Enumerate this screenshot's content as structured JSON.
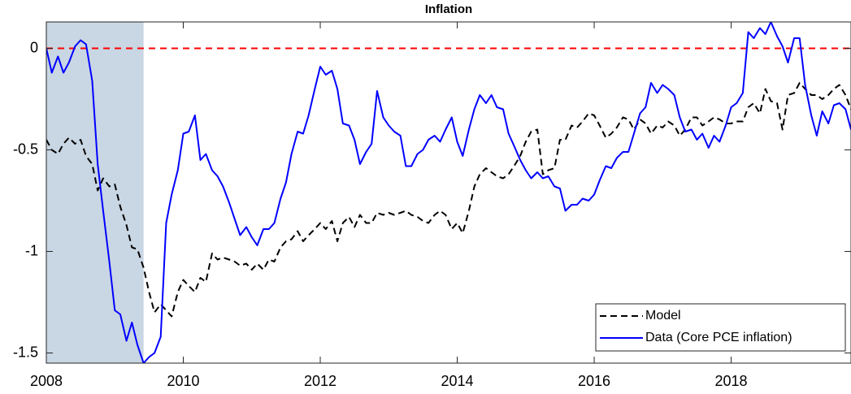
{
  "chart_data": {
    "type": "line",
    "title": "Inflation",
    "x": [
      2008,
      2008.08,
      2008.17,
      2008.25,
      2008.33,
      2008.42,
      2008.5,
      2008.58,
      2008.67,
      2008.75,
      2008.83,
      2008.92,
      2009,
      2009.08,
      2009.17,
      2009.25,
      2009.33,
      2009.42,
      2009.5,
      2009.58,
      2009.67,
      2009.75,
      2009.83,
      2009.92,
      2010,
      2010.08,
      2010.17,
      2010.25,
      2010.33,
      2010.42,
      2010.5,
      2010.58,
      2010.67,
      2010.75,
      2010.83,
      2010.92,
      2011,
      2011.08,
      2011.17,
      2011.25,
      2011.33,
      2011.42,
      2011.5,
      2011.58,
      2011.67,
      2011.75,
      2011.83,
      2011.92,
      2012,
      2012.08,
      2012.17,
      2012.25,
      2012.33,
      2012.42,
      2012.5,
      2012.58,
      2012.67,
      2012.75,
      2012.83,
      2012.92,
      2013,
      2013.08,
      2013.17,
      2013.25,
      2013.33,
      2013.42,
      2013.5,
      2013.58,
      2013.67,
      2013.75,
      2013.83,
      2013.92,
      2014,
      2014.08,
      2014.17,
      2014.25,
      2014.33,
      2014.42,
      2014.5,
      2014.58,
      2014.67,
      2014.75,
      2014.83,
      2014.92,
      2015,
      2015.08,
      2015.17,
      2015.25,
      2015.33,
      2015.42,
      2015.5,
      2015.58,
      2015.67,
      2015.75,
      2015.83,
      2015.92,
      2016,
      2016.08,
      2016.17,
      2016.25,
      2016.33,
      2016.42,
      2016.5,
      2016.58,
      2016.67,
      2016.75,
      2016.83,
      2016.92,
      2017,
      2017.08,
      2017.17,
      2017.25,
      2017.33,
      2017.42,
      2017.5,
      2017.58,
      2017.67,
      2017.75,
      2017.83,
      2017.92,
      2018,
      2018.08,
      2018.17,
      2018.25,
      2018.33,
      2018.42,
      2018.5,
      2018.58,
      2018.67,
      2018.75,
      2018.83,
      2018.92,
      2019,
      2019.08,
      2019.17,
      2019.25,
      2019.33,
      2019.42,
      2019.5,
      2019.58,
      2019.67,
      2019.75
    ],
    "series": [
      {
        "name": "Model",
        "color": "#000000",
        "linestyle": "dashed",
        "values": [
          -0.45,
          -0.5,
          -0.52,
          -0.47,
          -0.44,
          -0.47,
          -0.45,
          -0.53,
          -0.57,
          -0.7,
          -0.64,
          -0.68,
          -0.67,
          -0.78,
          -0.87,
          -0.98,
          -0.99,
          -1.08,
          -1.2,
          -1.3,
          -1.26,
          -1.29,
          -1.32,
          -1.2,
          -1.14,
          -1.17,
          -1.2,
          -1.13,
          -1.15,
          -1.01,
          -1.04,
          -1.03,
          -1.04,
          -1.05,
          -1.07,
          -1.06,
          -1.09,
          -1.06,
          -1.09,
          -1.04,
          -1.05,
          -0.98,
          -0.95,
          -0.94,
          -0.9,
          -0.95,
          -0.92,
          -0.89,
          -0.86,
          -0.89,
          -0.85,
          -0.95,
          -0.86,
          -0.83,
          -0.88,
          -0.82,
          -0.86,
          -0.86,
          -0.81,
          -0.82,
          -0.81,
          -0.82,
          -0.81,
          -0.8,
          -0.82,
          -0.83,
          -0.85,
          -0.86,
          -0.82,
          -0.8,
          -0.82,
          -0.89,
          -0.86,
          -0.91,
          -0.8,
          -0.68,
          -0.62,
          -0.59,
          -0.61,
          -0.63,
          -0.64,
          -0.62,
          -0.58,
          -0.53,
          -0.46,
          -0.41,
          -0.4,
          -0.62,
          -0.6,
          -0.59,
          -0.45,
          -0.45,
          -0.38,
          -0.39,
          -0.36,
          -0.32,
          -0.33,
          -0.38,
          -0.44,
          -0.42,
          -0.39,
          -0.34,
          -0.35,
          -0.4,
          -0.35,
          -0.37,
          -0.42,
          -0.38,
          -0.39,
          -0.36,
          -0.38,
          -0.43,
          -0.4,
          -0.34,
          -0.34,
          -0.38,
          -0.36,
          -0.34,
          -0.35,
          -0.37,
          -0.37,
          -0.36,
          -0.36,
          -0.29,
          -0.27,
          -0.32,
          -0.2,
          -0.26,
          -0.27,
          -0.4,
          -0.23,
          -0.22,
          -0.17,
          -0.2,
          -0.23,
          -0.23,
          -0.25,
          -0.23,
          -0.2,
          -0.18,
          -0.23,
          -0.3
        ]
      },
      {
        "name": "Data (Core PCE inflation)",
        "color": "#0000ff",
        "linestyle": "solid",
        "values": [
          0,
          -0.12,
          -0.04,
          -0.12,
          -0.07,
          0.01,
          0.04,
          0.02,
          -0.16,
          -0.57,
          -0.8,
          -1.05,
          -1.29,
          -1.31,
          -1.44,
          -1.35,
          -1.46,
          -1.55,
          -1.52,
          -1.5,
          -1.42,
          -0.86,
          -0.72,
          -0.6,
          -0.42,
          -0.41,
          -0.33,
          -0.55,
          -0.52,
          -0.6,
          -0.63,
          -0.68,
          -0.76,
          -0.84,
          -0.92,
          -0.88,
          -0.93,
          -0.97,
          -0.89,
          -0.89,
          -0.86,
          -0.74,
          -0.66,
          -0.52,
          -0.41,
          -0.42,
          -0.33,
          -0.2,
          -0.09,
          -0.13,
          -0.11,
          -0.2,
          -0.37,
          -0.38,
          -0.45,
          -0.57,
          -0.51,
          -0.47,
          -0.21,
          -0.34,
          -0.38,
          -0.41,
          -0.43,
          -0.58,
          -0.58,
          -0.52,
          -0.5,
          -0.45,
          -0.43,
          -0.46,
          -0.4,
          -0.34,
          -0.46,
          -0.53,
          -0.4,
          -0.3,
          -0.23,
          -0.27,
          -0.23,
          -0.29,
          -0.3,
          -0.42,
          -0.48,
          -0.55,
          -0.6,
          -0.64,
          -0.61,
          -0.64,
          -0.63,
          -0.68,
          -0.69,
          -0.8,
          -0.77,
          -0.77,
          -0.74,
          -0.75,
          -0.72,
          -0.65,
          -0.58,
          -0.59,
          -0.54,
          -0.51,
          -0.51,
          -0.42,
          -0.32,
          -0.29,
          -0.17,
          -0.22,
          -0.18,
          -0.2,
          -0.23,
          -0.34,
          -0.41,
          -0.4,
          -0.45,
          -0.42,
          -0.49,
          -0.43,
          -0.46,
          -0.38,
          -0.29,
          -0.27,
          -0.22,
          0.08,
          0.05,
          0.1,
          0.07,
          0.13,
          0.06,
          0.01,
          -0.07,
          0.05,
          0.05,
          -0.18,
          -0.33,
          -0.43,
          -0.31,
          -0.37,
          -0.28,
          -0.27,
          -0.3,
          -0.4
        ]
      }
    ],
    "xlim": [
      2008,
      2019.75
    ],
    "xticks": [
      2008,
      2010,
      2012,
      2014,
      2016,
      2018
    ],
    "ylim": [
      -1.55,
      0.13
    ],
    "yticks": [
      -1.5,
      -1,
      -0.5,
      0
    ],
    "reference_line": {
      "value": 0,
      "color": "#ff0000"
    },
    "shaded_region": {
      "xlim": [
        2008,
        2009.42
      ],
      "color": "#c9d6e3"
    },
    "legend": "lower right",
    "grid": false
  }
}
